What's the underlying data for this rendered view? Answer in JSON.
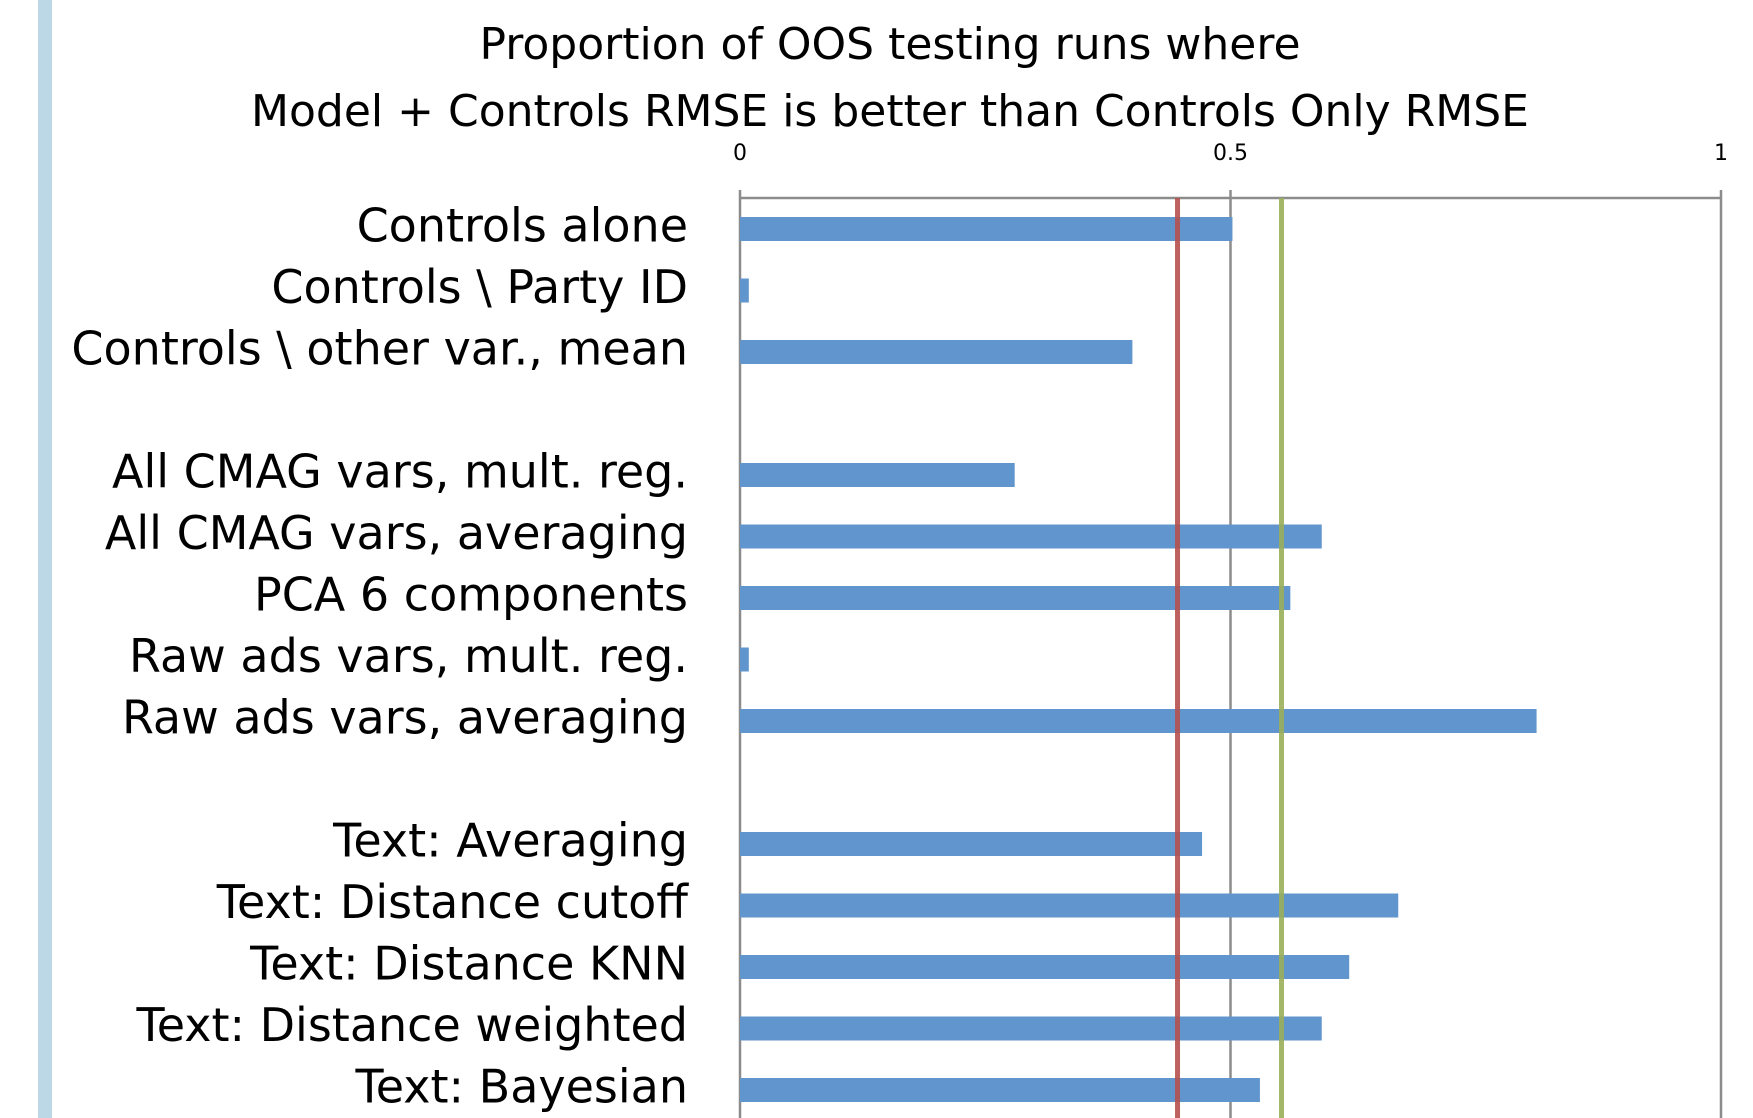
{
  "chart_data": {
    "type": "bar",
    "orientation": "horizontal",
    "title": [
      "Proportion of OOS testing runs where",
      "Model + Controls RMSE is better than Controls Only RMSE"
    ],
    "categories": [
      "Controls alone",
      "Controls \\ Party ID",
      "Controls \\ other var., mean",
      null,
      "All CMAG vars, mult. reg.",
      "All CMAG vars, averaging",
      "PCA 6 components",
      "Raw ads vars, mult. reg.",
      "Raw ads vars, averaging",
      null,
      "Text: Averaging",
      "Text: Distance cutoff",
      "Text: Distance KNN",
      "Text: Distance weighted",
      "Text: Bayesian"
    ],
    "values": [
      0.502,
      0.009,
      0.4,
      null,
      0.28,
      0.593,
      0.561,
      0.009,
      0.812,
      null,
      0.471,
      0.671,
      0.621,
      0.593,
      0.53
    ],
    "color": "#6195cd",
    "xlim": [
      0,
      1
    ],
    "xticks": [
      0,
      0.5,
      1
    ],
    "grid": true,
    "reference_lines": [
      {
        "value": 0.446,
        "color": "#b5504e"
      },
      {
        "value": 0.552,
        "color": "#9aae5a"
      }
    ]
  }
}
